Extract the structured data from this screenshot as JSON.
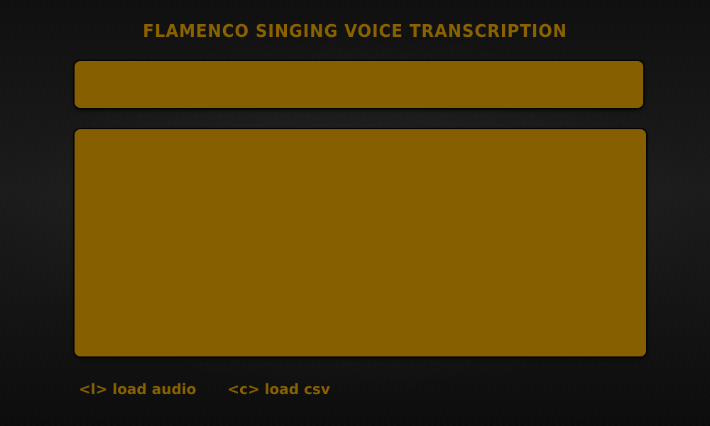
{
  "app": {
    "title": "FLAMENCO SINGING VOICE TRANSCRIPTION"
  },
  "footer": {
    "actions": [
      {
        "label": "<l> load audio"
      },
      {
        "label": "<c> load csv"
      }
    ]
  },
  "colors": {
    "accent": "#8a6300",
    "panel": "#865f00",
    "background": "#121212"
  }
}
